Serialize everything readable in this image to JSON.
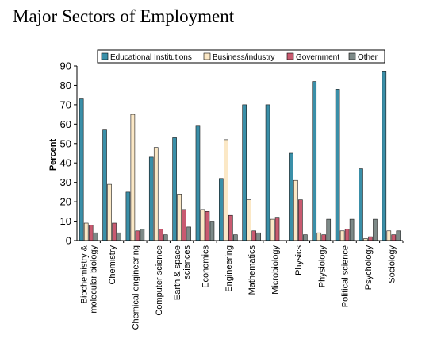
{
  "page": {
    "title": "Major Sectors of Employment"
  },
  "chart_data": {
    "type": "bar",
    "title": "Major Sectors of Employment",
    "xlabel": "",
    "ylabel": "Percent",
    "ylim": [
      0,
      90
    ],
    "yticks": [
      0,
      10,
      20,
      30,
      40,
      50,
      60,
      70,
      80,
      90
    ],
    "grid": false,
    "legend_position": "top",
    "categories": [
      [
        "Biochemistry &",
        "molecular biology"
      ],
      [
        "Chemistry"
      ],
      [
        "Chemical engineering"
      ],
      [
        "Computer science"
      ],
      [
        "Earth & space",
        "sciences"
      ],
      [
        "Economics"
      ],
      [
        "Engineering"
      ],
      [
        "Mathematics"
      ],
      [
        "Microbiology"
      ],
      [
        "Physics"
      ],
      [
        "Physiology"
      ],
      [
        "Political science"
      ],
      [
        "Psychology"
      ],
      [
        "Sociology"
      ]
    ],
    "series": [
      {
        "name": "Educational Institutions",
        "color": "#3a8fa8",
        "values": [
          73,
          57,
          25,
          43,
          53,
          59,
          32,
          70,
          70,
          45,
          82,
          78,
          37,
          87
        ]
      },
      {
        "name": "Business/industry",
        "color": "#fbe8c6",
        "values": [
          9,
          29,
          65,
          48,
          24,
          16,
          52,
          21,
          11,
          31,
          4,
          5,
          1,
          5
        ]
      },
      {
        "name": "Government",
        "color": "#c95a70",
        "values": [
          8,
          9,
          5,
          6,
          16,
          15,
          13,
          5,
          12,
          21,
          3,
          6,
          2,
          3
        ]
      },
      {
        "name": "Other",
        "color": "#7d8a88",
        "values": [
          4,
          4,
          6,
          3,
          7,
          10,
          3,
          4,
          0,
          3,
          11,
          11,
          11,
          5
        ]
      }
    ]
  }
}
